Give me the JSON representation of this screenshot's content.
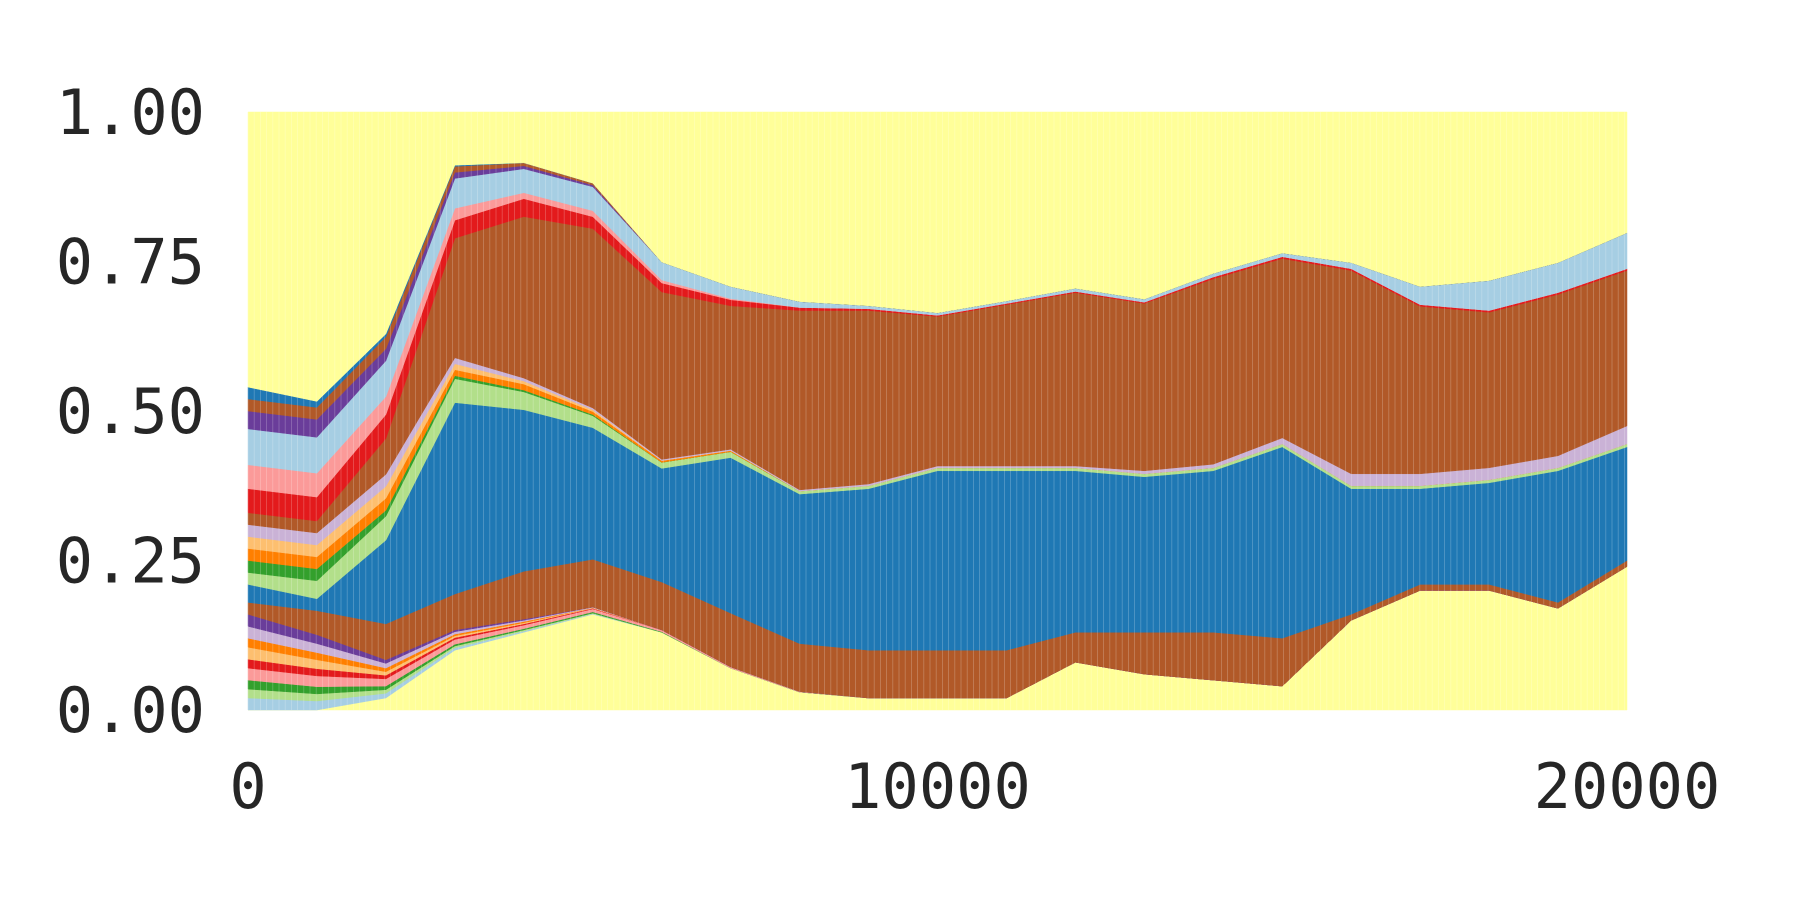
{
  "chart_data": {
    "type": "area",
    "stacked": true,
    "normalized": true,
    "title": "",
    "xlabel": "",
    "ylabel": "",
    "xlim": [
      0,
      20000
    ],
    "ylim": [
      0,
      1
    ],
    "x_ticks": [
      {
        "value": 0,
        "label": "0"
      },
      {
        "value": 10000,
        "label": "10000"
      },
      {
        "value": 20000,
        "label": "20000"
      }
    ],
    "y_ticks": [
      {
        "value": 0,
        "label": "0.00"
      },
      {
        "value": 0.25,
        "label": "0.25"
      },
      {
        "value": 0.5,
        "label": "0.50"
      },
      {
        "value": 0.75,
        "label": "0.75"
      },
      {
        "value": 1,
        "label": "1.00"
      }
    ],
    "grid": false,
    "legend": "none",
    "x": [
      0,
      1000,
      2000,
      3000,
      4000,
      5000,
      6000,
      7000,
      8000,
      9000,
      10000,
      11000,
      12000,
      13000,
      14000,
      15000,
      16000,
      17000,
      18000,
      19000,
      20000
    ],
    "series": [
      {
        "name": "yellow bottom",
        "color": "#ffff99",
        "values": [
          0.0,
          0.0,
          0.02,
          0.1,
          0.13,
          0.16,
          0.13,
          0.07,
          0.03,
          0.02,
          0.02,
          0.02,
          0.08,
          0.06,
          0.05,
          0.04,
          0.15,
          0.2,
          0.2,
          0.17,
          0.24
        ]
      },
      {
        "name": "light blue bottom",
        "color": "#a6cee3",
        "values": [
          0.02,
          0.015,
          0.008,
          0.004,
          0.002,
          0.001,
          0,
          0,
          0,
          0,
          0,
          0,
          0,
          0,
          0,
          0,
          0,
          0,
          0,
          0,
          0
        ]
      },
      {
        "name": "light green bottom",
        "color": "#b2df8a",
        "values": [
          0.015,
          0.012,
          0.006,
          0.003,
          0.002,
          0.001,
          0,
          0,
          0,
          0,
          0,
          0,
          0,
          0,
          0,
          0,
          0,
          0,
          0,
          0,
          0
        ]
      },
      {
        "name": "green bottom",
        "color": "#33a02c",
        "values": [
          0.015,
          0.012,
          0.006,
          0.003,
          0.002,
          0.002,
          0.001,
          0,
          0,
          0,
          0,
          0,
          0,
          0,
          0,
          0,
          0,
          0,
          0,
          0,
          0
        ]
      },
      {
        "name": "pink bottom",
        "color": "#fb9a99",
        "values": [
          0.02,
          0.018,
          0.012,
          0.008,
          0.006,
          0.005,
          0.003,
          0.002,
          0.001,
          0,
          0,
          0,
          0,
          0,
          0,
          0,
          0,
          0,
          0,
          0,
          0
        ]
      },
      {
        "name": "red bottom",
        "color": "#e31a1c",
        "values": [
          0.015,
          0.012,
          0.006,
          0.003,
          0.002,
          0.001,
          0,
          0,
          0,
          0,
          0,
          0,
          0,
          0,
          0,
          0,
          0,
          0,
          0,
          0,
          0
        ]
      },
      {
        "name": "peach bottom",
        "color": "#fdbf6f",
        "values": [
          0.02,
          0.015,
          0.006,
          0.003,
          0.002,
          0.001,
          0,
          0,
          0,
          0,
          0,
          0,
          0,
          0,
          0,
          0,
          0,
          0,
          0,
          0,
          0
        ]
      },
      {
        "name": "orange bottom",
        "color": "#ff7f00",
        "values": [
          0.015,
          0.012,
          0.006,
          0.003,
          0.002,
          0,
          0,
          0,
          0,
          0,
          0,
          0,
          0,
          0,
          0,
          0,
          0,
          0,
          0,
          0,
          0
        ]
      },
      {
        "name": "lavender bottom",
        "color": "#cab2d6",
        "values": [
          0.02,
          0.015,
          0.008,
          0.004,
          0.002,
          0.001,
          0,
          0,
          0,
          0,
          0,
          0,
          0,
          0,
          0,
          0,
          0,
          0,
          0,
          0,
          0
        ]
      },
      {
        "name": "purple bottom",
        "color": "#6a3d9a",
        "values": [
          0.02,
          0.015,
          0.006,
          0.003,
          0.002,
          0,
          0,
          0,
          0,
          0,
          0,
          0,
          0,
          0,
          0,
          0,
          0,
          0,
          0,
          0,
          0
        ]
      },
      {
        "name": "brown lower",
        "color": "#b15928",
        "values": [
          0.02,
          0.04,
          0.06,
          0.06,
          0.08,
          0.08,
          0.08,
          0.09,
          0.08,
          0.08,
          0.08,
          0.08,
          0.05,
          0.07,
          0.08,
          0.08,
          0.01,
          0.01,
          0.01,
          0.01,
          0.01
        ]
      },
      {
        "name": "blue",
        "color": "#1f78b4",
        "values": [
          0.03,
          0.02,
          0.14,
          0.32,
          0.27,
          0.22,
          0.19,
          0.26,
          0.25,
          0.27,
          0.3,
          0.3,
          0.27,
          0.26,
          0.27,
          0.32,
          0.21,
          0.16,
          0.17,
          0.22,
          0.19
        ]
      },
      {
        "name": "light green upper",
        "color": "#b2df8a",
        "values": [
          0.02,
          0.03,
          0.04,
          0.04,
          0.03,
          0.02,
          0.01,
          0.01,
          0.005,
          0.005,
          0.005,
          0.005,
          0.005,
          0.005,
          0.005,
          0.005,
          0.005,
          0.005,
          0.005,
          0.005,
          0.005
        ]
      },
      {
        "name": "green upper",
        "color": "#33a02c",
        "values": [
          0.02,
          0.02,
          0.01,
          0.005,
          0.003,
          0.002,
          0,
          0,
          0,
          0,
          0,
          0,
          0,
          0,
          0,
          0,
          0,
          0,
          0,
          0,
          0
        ]
      },
      {
        "name": "orange upper",
        "color": "#ff7f00",
        "values": [
          0.02,
          0.02,
          0.02,
          0.01,
          0.01,
          0.005,
          0.003,
          0.002,
          0,
          0,
          0,
          0,
          0,
          0,
          0,
          0,
          0,
          0,
          0,
          0,
          0
        ]
      },
      {
        "name": "peach upper",
        "color": "#fdbf6f",
        "values": [
          0.02,
          0.02,
          0.02,
          0.01,
          0.005,
          0.003,
          0,
          0,
          0,
          0,
          0,
          0,
          0,
          0,
          0,
          0,
          0,
          0,
          0,
          0,
          0
        ]
      },
      {
        "name": "lavender upper",
        "color": "#cab2d6",
        "values": [
          0.02,
          0.02,
          0.02,
          0.01,
          0.005,
          0.003,
          0.002,
          0.002,
          0.002,
          0.003,
          0.003,
          0.003,
          0.003,
          0.005,
          0.006,
          0.01,
          0.02,
          0.02,
          0.02,
          0.02,
          0.03
        ]
      },
      {
        "name": "brown upper",
        "color": "#b15928",
        "values": [
          0.02,
          0.02,
          0.06,
          0.2,
          0.27,
          0.3,
          0.28,
          0.24,
          0.3,
          0.29,
          0.25,
          0.27,
          0.29,
          0.28,
          0.31,
          0.3,
          0.34,
          0.28,
          0.26,
          0.27,
          0.26
        ]
      },
      {
        "name": "red upper",
        "color": "#e31a1c",
        "values": [
          0.04,
          0.04,
          0.04,
          0.03,
          0.03,
          0.02,
          0.015,
          0.01,
          0.005,
          0.003,
          0.002,
          0.002,
          0.002,
          0.002,
          0.003,
          0.003,
          0.003,
          0.003,
          0.003,
          0.003,
          0.003
        ]
      },
      {
        "name": "pink upper",
        "color": "#fb9a99",
        "values": [
          0.04,
          0.04,
          0.03,
          0.02,
          0.01,
          0.01,
          0.005,
          0.002,
          0,
          0,
          0,
          0,
          0,
          0,
          0,
          0,
          0,
          0,
          0,
          0,
          0
        ]
      },
      {
        "name": "light blue upper",
        "color": "#a6cee3",
        "values": [
          0.06,
          0.06,
          0.06,
          0.05,
          0.04,
          0.04,
          0.03,
          0.02,
          0.01,
          0.005,
          0.004,
          0.004,
          0.005,
          0.005,
          0.006,
          0.006,
          0.01,
          0.03,
          0.05,
          0.05,
          0.06
        ]
      },
      {
        "name": "purple upper",
        "color": "#6a3d9a",
        "values": [
          0.03,
          0.03,
          0.02,
          0.01,
          0.005,
          0.003,
          0,
          0,
          0,
          0,
          0,
          0,
          0,
          0,
          0,
          0,
          0,
          0,
          0,
          0,
          0
        ]
      },
      {
        "name": "brown top",
        "color": "#b15928",
        "values": [
          0.02,
          0.02,
          0.02,
          0.01,
          0.005,
          0.003,
          0,
          0,
          0,
          0,
          0,
          0,
          0,
          0,
          0,
          0,
          0,
          0,
          0,
          0,
          0
        ]
      },
      {
        "name": "blue top",
        "color": "#1f78b4",
        "values": [
          0.02,
          0.01,
          0.005,
          0.002,
          0,
          0,
          0,
          0,
          0,
          0,
          0,
          0,
          0,
          0,
          0,
          0,
          0,
          0,
          0,
          0,
          0
        ]
      },
      {
        "name": "yellow top",
        "color": "#ffff99",
        "values": [
          0,
          0,
          0,
          0,
          0,
          0,
          0,
          0,
          0,
          0,
          0,
          0,
          0,
          0,
          0,
          0,
          0,
          0,
          0,
          0,
          0
        ]
      }
    ]
  }
}
